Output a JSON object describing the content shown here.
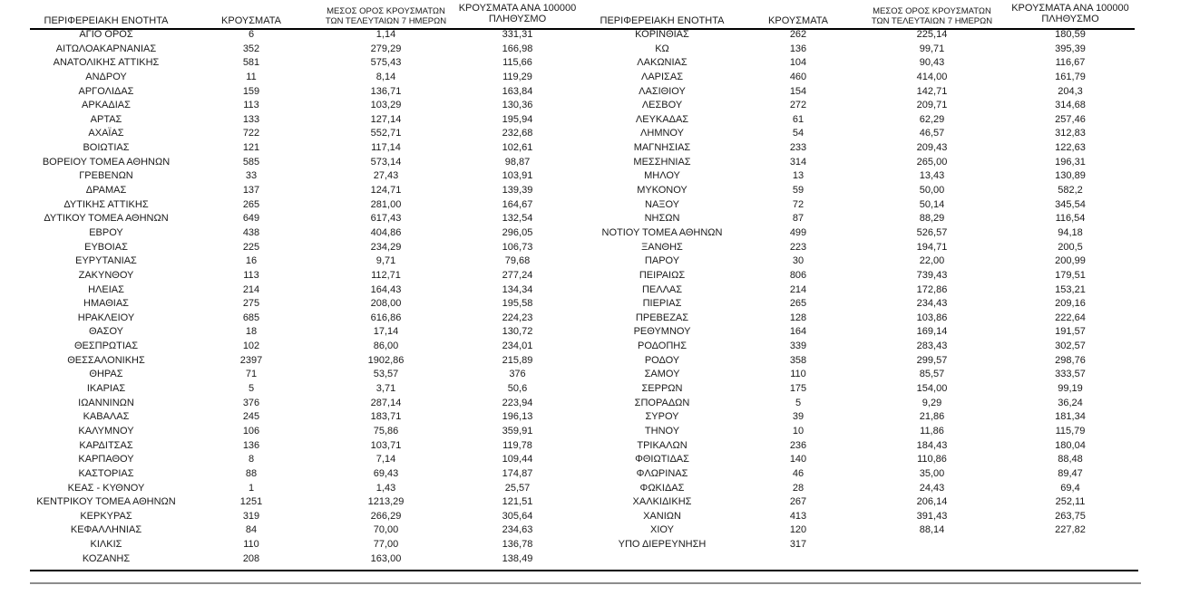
{
  "page": {
    "background_color": "#ffffff",
    "text_color": "#1a1a1a",
    "rule_color": "#000000",
    "bottom_rule_color": "#8c8c8c"
  },
  "headers": {
    "region": "ΠΕΡΙΦΕΡΕΙΑΚΗ ΕΝΟΤΗΤΑ",
    "cases": "ΚΡΟΥΣΜΑΤΑ",
    "avg7_line1": "ΜΕΣΟΣ ΟΡΟΣ ΚΡΟΥΣΜΑΤΩΝ",
    "avg7_line2": "ΤΩΝ ΤΕΛΕΥΤΑΙΩΝ 7 ΗΜΕΡΩΝ",
    "per100k_line1": "ΚΡΟΥΣΜΑΤΑ ΑΝΑ 100000",
    "per100k_line2": "ΠΛΗΘΥΣΜΟ"
  },
  "left_table": {
    "rows": [
      [
        "ΑΓΙΟ ΟΡΟΣ",
        "6",
        "1,14",
        "331,31"
      ],
      [
        "ΑΙΤΩΛΟΑΚΑΡΝΑΝΙΑΣ",
        "352",
        "279,29",
        "166,98"
      ],
      [
        "ΑΝΑΤΟΛΙΚΗΣ ΑΤΤΙΚΗΣ",
        "581",
        "575,43",
        "115,66"
      ],
      [
        "ΑΝΔΡΟΥ",
        "11",
        "8,14",
        "119,29"
      ],
      [
        "ΑΡΓΟΛΙΔΑΣ",
        "159",
        "136,71",
        "163,84"
      ],
      [
        "ΑΡΚΑΔΙΑΣ",
        "113",
        "103,29",
        "130,36"
      ],
      [
        "ΑΡΤΑΣ",
        "133",
        "127,14",
        "195,94"
      ],
      [
        "ΑΧΑΪΑΣ",
        "722",
        "552,71",
        "232,68"
      ],
      [
        "ΒΟΙΩΤΙΑΣ",
        "121",
        "117,14",
        "102,61"
      ],
      [
        "ΒΟΡΕΙΟΥ ΤΟΜΕΑ ΑΘΗΝΩΝ",
        "585",
        "573,14",
        "98,87"
      ],
      [
        "ΓΡΕΒΕΝΩΝ",
        "33",
        "27,43",
        "103,91"
      ],
      [
        "ΔΡΑΜΑΣ",
        "137",
        "124,71",
        "139,39"
      ],
      [
        "ΔΥΤΙΚΗΣ ΑΤΤΙΚΗΣ",
        "265",
        "281,00",
        "164,67"
      ],
      [
        "ΔΥΤΙΚΟΥ ΤΟΜΕΑ ΑΘΗΝΩΝ",
        "649",
        "617,43",
        "132,54"
      ],
      [
        "ΕΒΡΟΥ",
        "438",
        "404,86",
        "296,05"
      ],
      [
        "ΕΥΒΟΙΑΣ",
        "225",
        "234,29",
        "106,73"
      ],
      [
        "ΕΥΡΥΤΑΝΙΑΣ",
        "16",
        "9,71",
        "79,68"
      ],
      [
        "ΖΑΚΥΝΘΟΥ",
        "113",
        "112,71",
        "277,24"
      ],
      [
        "ΗΛΕΙΑΣ",
        "214",
        "164,43",
        "134,34"
      ],
      [
        "ΗΜΑΘΙΑΣ",
        "275",
        "208,00",
        "195,58"
      ],
      [
        "ΗΡΑΚΛΕΙΟΥ",
        "685",
        "616,86",
        "224,23"
      ],
      [
        "ΘΑΣΟΥ",
        "18",
        "17,14",
        "130,72"
      ],
      [
        "ΘΕΣΠΡΩΤΙΑΣ",
        "102",
        "86,00",
        "234,01"
      ],
      [
        "ΘΕΣΣΑΛΟΝΙΚΗΣ",
        "2397",
        "1902,86",
        "215,89"
      ],
      [
        "ΘΗΡΑΣ",
        "71",
        "53,57",
        "376"
      ],
      [
        "ΙΚΑΡΙΑΣ",
        "5",
        "3,71",
        "50,6"
      ],
      [
        "ΙΩΑΝΝΙΝΩΝ",
        "376",
        "287,14",
        "223,94"
      ],
      [
        "ΚΑΒΑΛΑΣ",
        "245",
        "183,71",
        "196,13"
      ],
      [
        "ΚΑΛΥΜΝΟΥ",
        "106",
        "75,86",
        "359,91"
      ],
      [
        "ΚΑΡΔΙΤΣΑΣ",
        "136",
        "103,71",
        "119,78"
      ],
      [
        "ΚΑΡΠΑΘΟΥ",
        "8",
        "7,14",
        "109,44"
      ],
      [
        "ΚΑΣΤΟΡΙΑΣ",
        "88",
        "69,43",
        "174,87"
      ],
      [
        "ΚΕΑΣ - ΚΥΘΝΟΥ",
        "1",
        "1,43",
        "25,57"
      ],
      [
        "ΚΕΝΤΡΙΚΟΥ ΤΟΜΕΑ ΑΘΗΝΩΝ",
        "1251",
        "1213,29",
        "121,51"
      ],
      [
        "ΚΕΡΚΥΡΑΣ",
        "319",
        "266,29",
        "305,64"
      ],
      [
        "ΚΕΦΑΛΛΗΝΙΑΣ",
        "84",
        "70,00",
        "234,63"
      ],
      [
        "ΚΙΛΚΙΣ",
        "110",
        "77,00",
        "136,78"
      ],
      [
        "ΚΟΖΑΝΗΣ",
        "208",
        "163,00",
        "138,49"
      ]
    ]
  },
  "right_table": {
    "rows": [
      [
        "ΚΟΡΙΝΘΙΑΣ",
        "262",
        "225,14",
        "180,59"
      ],
      [
        "ΚΩ",
        "136",
        "99,71",
        "395,39"
      ],
      [
        "ΛΑΚΩΝΙΑΣ",
        "104",
        "90,43",
        "116,67"
      ],
      [
        "ΛΑΡΙΣΑΣ",
        "460",
        "414,00",
        "161,79"
      ],
      [
        "ΛΑΣΙΘΙΟΥ",
        "154",
        "142,71",
        "204,3"
      ],
      [
        "ΛΕΣΒΟΥ",
        "272",
        "209,71",
        "314,68"
      ],
      [
        "ΛΕΥΚΑΔΑΣ",
        "61",
        "62,29",
        "257,46"
      ],
      [
        "ΛΗΜΝΟΥ",
        "54",
        "46,57",
        "312,83"
      ],
      [
        "ΜΑΓΝΗΣΙΑΣ",
        "233",
        "209,43",
        "122,63"
      ],
      [
        "ΜΕΣΣΗΝΙΑΣ",
        "314",
        "265,00",
        "196,31"
      ],
      [
        "ΜΗΛΟΥ",
        "13",
        "13,43",
        "130,89"
      ],
      [
        "ΜΥΚΟΝΟΥ",
        "59",
        "50,00",
        "582,2"
      ],
      [
        "ΝΑΞΟΥ",
        "72",
        "50,14",
        "345,54"
      ],
      [
        "ΝΗΣΩΝ",
        "87",
        "88,29",
        "116,54"
      ],
      [
        "ΝΟΤΙΟΥ ΤΟΜΕΑ ΑΘΗΝΩΝ",
        "499",
        "526,57",
        "94,18"
      ],
      [
        "ΞΑΝΘΗΣ",
        "223",
        "194,71",
        "200,5"
      ],
      [
        "ΠΑΡΟΥ",
        "30",
        "22,00",
        "200,99"
      ],
      [
        "ΠΕΙΡΑΙΩΣ",
        "806",
        "739,43",
        "179,51"
      ],
      [
        "ΠΕΛΛΑΣ",
        "214",
        "172,86",
        "153,21"
      ],
      [
        "ΠΙΕΡΙΑΣ",
        "265",
        "234,43",
        "209,16"
      ],
      [
        "ΠΡΕΒΕΖΑΣ",
        "128",
        "103,86",
        "222,64"
      ],
      [
        "ΡΕΘΥΜΝΟΥ",
        "164",
        "169,14",
        "191,57"
      ],
      [
        "ΡΟΔΟΠΗΣ",
        "339",
        "283,43",
        "302,57"
      ],
      [
        "ΡΟΔΟΥ",
        "358",
        "299,57",
        "298,76"
      ],
      [
        "ΣΑΜΟΥ",
        "110",
        "85,57",
        "333,57"
      ],
      [
        "ΣΕΡΡΩΝ",
        "175",
        "154,00",
        "99,19"
      ],
      [
        "ΣΠΟΡΑΔΩΝ",
        "5",
        "9,29",
        "36,24"
      ],
      [
        "ΣΥΡΟΥ",
        "39",
        "21,86",
        "181,34"
      ],
      [
        "ΤΗΝΟΥ",
        "10",
        "11,86",
        "115,79"
      ],
      [
        "ΤΡΙΚΑΛΩΝ",
        "236",
        "184,43",
        "180,04"
      ],
      [
        "ΦΘΙΩΤΙΔΑΣ",
        "140",
        "110,86",
        "88,48"
      ],
      [
        "ΦΛΩΡΙΝΑΣ",
        "46",
        "35,00",
        "89,47"
      ],
      [
        "ΦΩΚΙΔΑΣ",
        "28",
        "24,43",
        "69,4"
      ],
      [
        "ΧΑΛΚΙΔΙΚΗΣ",
        "267",
        "206,14",
        "252,11"
      ],
      [
        "ΧΑΝΙΩΝ",
        "413",
        "391,43",
        "263,75"
      ],
      [
        "ΧΙΟΥ",
        "120",
        "88,14",
        "227,82"
      ],
      [
        "ΥΠΟ ΔΙΕΡΕΥΝΗΣΗ",
        "317",
        "",
        ""
      ]
    ]
  }
}
